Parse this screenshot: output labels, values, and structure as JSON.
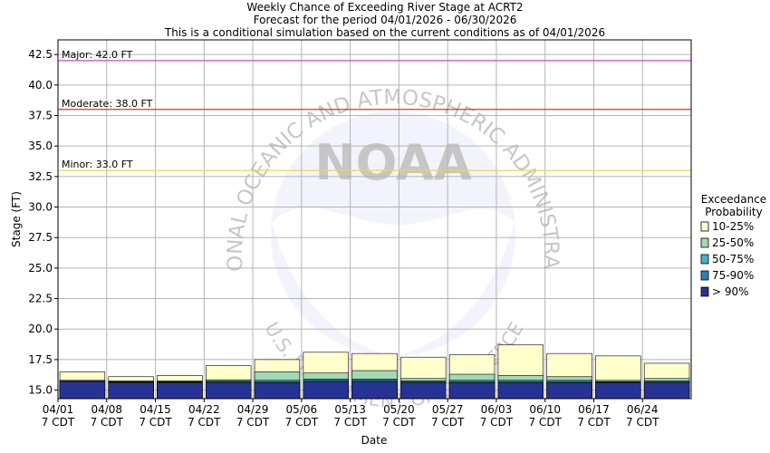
{
  "chart_data": {
    "type": "bar",
    "title": [
      "Weekly Chance of Exceeding River Stage at ACRT2",
      "Forecast for the period 04/01/2026 - 06/30/2026",
      "This is a conditional simulation based on the current conditions as of 04/01/2026"
    ],
    "xlabel": "Date",
    "ylabel": "Stage (FT)",
    "ylim": [
      14.3,
      43.7
    ],
    "yticks": [
      "15.0",
      "17.5",
      "20.0",
      "22.5",
      "25.0",
      "27.5",
      "30.0",
      "32.5",
      "35.0",
      "37.5",
      "40.0",
      "42.5"
    ],
    "grid": true,
    "categories": [
      "04/01",
      "04/08",
      "04/15",
      "04/22",
      "04/29",
      "05/06",
      "05/13",
      "05/20",
      "05/27",
      "06/03",
      "06/10",
      "06/17",
      "06/24"
    ],
    "category_sublabel": "7 CDT",
    "thresholds": [
      {
        "label": "Major: 42.0 FT",
        "value": 42.0,
        "color": "#cc44cc"
      },
      {
        "label": "Moderate: 38.0 FT",
        "value": 38.0,
        "color": "#dd3333"
      },
      {
        "label": "Minor: 33.0 FT",
        "value": 33.0,
        "color": "#e8d84a"
      }
    ],
    "legend": {
      "title": [
        "Exceedance",
        "Probability"
      ],
      "placement": "right",
      "entries": [
        {
          "label": "10-25%",
          "color": "#ffffcc"
        },
        {
          "label": "25-50%",
          "color": "#a1dab4"
        },
        {
          "label": "50-75%",
          "color": "#41b6c4"
        },
        {
          "label": "75-90%",
          "color": "#2c7fb8"
        },
        {
          "label": "> 90%",
          "color": "#253494"
        }
      ]
    },
    "series": [
      {
        "name": "> 90%",
        "values": [
          15.7,
          15.6,
          15.6,
          15.6,
          15.6,
          15.7,
          15.7,
          15.6,
          15.6,
          15.6,
          15.6,
          15.6,
          15.6
        ]
      },
      {
        "name": "75-90%",
        "values": [
          15.75,
          15.65,
          15.65,
          15.7,
          15.7,
          15.8,
          15.8,
          15.7,
          15.7,
          15.7,
          15.7,
          15.65,
          15.7
        ]
      },
      {
        "name": "50-75%",
        "values": [
          15.8,
          15.7,
          15.7,
          15.75,
          15.8,
          15.9,
          15.9,
          15.75,
          15.8,
          15.8,
          15.8,
          15.7,
          15.75
        ]
      },
      {
        "name": "25-50%",
        "values": [
          15.8,
          15.75,
          15.75,
          15.85,
          16.5,
          16.4,
          16.6,
          15.95,
          16.3,
          16.2,
          16.1,
          15.8,
          15.95
        ]
      },
      {
        "name": "10-25%",
        "values": [
          16.5,
          16.1,
          16.2,
          17.0,
          17.5,
          18.1,
          18.0,
          17.7,
          17.9,
          18.7,
          18.0,
          17.8,
          17.2
        ]
      }
    ]
  },
  "watermark": {
    "text_top": "NATIONAL OCEANIC AND ATMOSPHERIC ADMINISTRATION",
    "text_bottom": "U.S. DEPARTMENT OF COMMERCE",
    "text_center": "NOAA"
  }
}
